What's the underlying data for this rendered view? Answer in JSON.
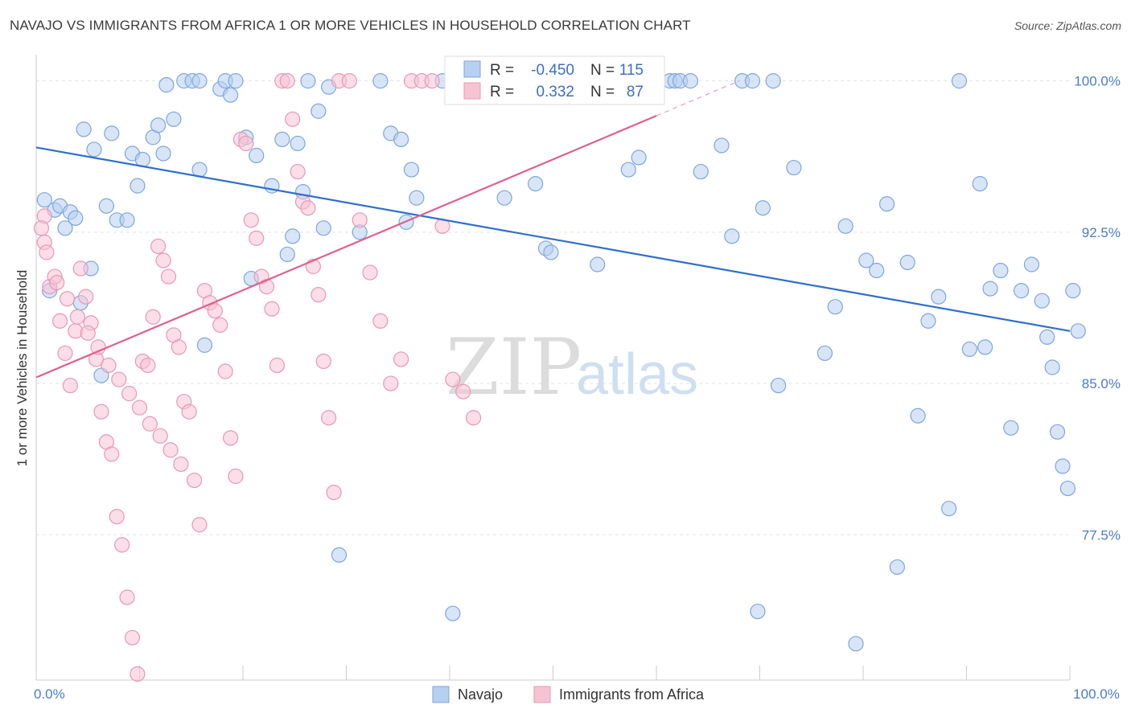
{
  "title": "NAVAJO VS IMMIGRANTS FROM AFRICA 1 OR MORE VEHICLES IN HOUSEHOLD CORRELATION CHART",
  "source": "Source: ZipAtlas.com",
  "watermark": {
    "zip": "ZIP",
    "atlas": "atlas"
  },
  "colors": {
    "navajo_fill": "#b7cff0",
    "navajo_stroke": "#7ea6dd",
    "navajo_line": "#2f6fcc",
    "africa_fill": "#f7c3d3",
    "africa_stroke": "#e898b3",
    "africa_line": "#e0608b",
    "grid": "#e3e3e3",
    "tick_text": "#4a7cc7"
  },
  "stats": {
    "navajo": {
      "r_label": "R =",
      "r_value": "-0.450",
      "n_label": "N =",
      "n_value": "115"
    },
    "africa": {
      "r_label": "R =",
      "r_value": "0.332",
      "n_label": "N =",
      "n_value": "87"
    }
  },
  "chart_data": {
    "type": "scatter",
    "title": "NAVAJO VS IMMIGRANTS FROM AFRICA 1 OR MORE VEHICLES IN HOUSEHOLD CORRELATION CHART",
    "xlabel": "",
    "ylabel": "1 or more Vehicles in Household",
    "xlim": [
      0,
      100
    ],
    "ylim": [
      70.3,
      101.3
    ],
    "x_tick_labels": [
      {
        "value": 0,
        "label": "0.0%"
      },
      {
        "value": 100,
        "label": "100.0%"
      }
    ],
    "y_tick_labels": [
      {
        "value": 100.0,
        "label": "100.0%"
      },
      {
        "value": 92.5,
        "label": "92.5%"
      },
      {
        "value": 85.0,
        "label": "85.0%"
      },
      {
        "value": 77.5,
        "label": "77.5%"
      }
    ],
    "grid": true,
    "legend_position": "bottom-center",
    "series": [
      {
        "name": "Navajo",
        "trend": {
          "x": [
            0,
            100
          ],
          "y": [
            96.7,
            87.6
          ]
        },
        "points": [
          [
            1.3,
            89.6
          ],
          [
            0.8,
            94.1
          ],
          [
            1.8,
            93.6
          ],
          [
            2.3,
            93.8
          ],
          [
            2.8,
            92.7
          ],
          [
            3.3,
            93.5
          ],
          [
            3.8,
            93.2
          ],
          [
            4.3,
            89.0
          ],
          [
            4.6,
            97.6
          ],
          [
            5.3,
            90.7
          ],
          [
            5.6,
            96.6
          ],
          [
            6.3,
            85.4
          ],
          [
            6.8,
            93.8
          ],
          [
            7.3,
            97.4
          ],
          [
            7.8,
            93.1
          ],
          [
            8.8,
            93.1
          ],
          [
            9.3,
            96.4
          ],
          [
            9.8,
            94.8
          ],
          [
            10.3,
            96.1
          ],
          [
            11.3,
            97.2
          ],
          [
            11.8,
            97.8
          ],
          [
            12.3,
            96.4
          ],
          [
            12.6,
            99.8
          ],
          [
            13.3,
            98.1
          ],
          [
            14.3,
            100.0
          ],
          [
            15.1,
            100.0
          ],
          [
            15.8,
            100.0
          ],
          [
            15.8,
            95.6
          ],
          [
            16.3,
            86.9
          ],
          [
            17.8,
            99.6
          ],
          [
            18.3,
            100.0
          ],
          [
            18.8,
            99.3
          ],
          [
            19.3,
            100.0
          ],
          [
            20.3,
            97.2
          ],
          [
            20.8,
            90.2
          ],
          [
            21.3,
            96.3
          ],
          [
            22.8,
            94.8
          ],
          [
            23.8,
            97.1
          ],
          [
            24.3,
            91.4
          ],
          [
            24.8,
            92.3
          ],
          [
            25.3,
            96.9
          ],
          [
            25.8,
            94.5
          ],
          [
            26.3,
            100.0
          ],
          [
            27.3,
            98.5
          ],
          [
            27.8,
            92.7
          ],
          [
            28.3,
            99.7
          ],
          [
            29.3,
            76.5
          ],
          [
            31.3,
            92.5
          ],
          [
            33.3,
            100.0
          ],
          [
            34.3,
            97.4
          ],
          [
            35.3,
            97.1
          ],
          [
            35.8,
            93.0
          ],
          [
            36.3,
            95.6
          ],
          [
            36.8,
            94.2
          ],
          [
            39.3,
            100.0
          ],
          [
            40.3,
            73.6
          ],
          [
            41.3,
            100.0
          ],
          [
            42.3,
            100.0
          ],
          [
            43.3,
            100.0
          ],
          [
            44.3,
            100.0
          ],
          [
            45.3,
            94.2
          ],
          [
            47.3,
            100.0
          ],
          [
            48.3,
            94.9
          ],
          [
            49.3,
            91.7
          ],
          [
            49.8,
            91.5
          ],
          [
            52.3,
            100.0
          ],
          [
            54.3,
            90.9
          ],
          [
            55.3,
            100.0
          ],
          [
            56.3,
            100.0
          ],
          [
            57.3,
            95.6
          ],
          [
            58.3,
            96.2
          ],
          [
            61.3,
            100.0
          ],
          [
            61.8,
            100.0
          ],
          [
            62.3,
            100.0
          ],
          [
            63.3,
            100.0
          ],
          [
            64.3,
            95.5
          ],
          [
            66.3,
            96.8
          ],
          [
            67.3,
            92.3
          ],
          [
            68.3,
            100.0
          ],
          [
            69.3,
            100.0
          ],
          [
            69.8,
            73.7
          ],
          [
            70.3,
            93.7
          ],
          [
            71.3,
            100.0
          ],
          [
            71.8,
            84.9
          ],
          [
            73.3,
            95.7
          ],
          [
            76.3,
            86.5
          ],
          [
            77.3,
            88.8
          ],
          [
            78.3,
            92.8
          ],
          [
            79.3,
            72.1
          ],
          [
            80.3,
            91.1
          ],
          [
            81.3,
            90.6
          ],
          [
            82.3,
            93.9
          ],
          [
            83.3,
            75.9
          ],
          [
            84.3,
            91.0
          ],
          [
            85.3,
            83.4
          ],
          [
            86.3,
            88.1
          ],
          [
            87.3,
            89.3
          ],
          [
            88.3,
            78.8
          ],
          [
            89.3,
            100.0
          ],
          [
            90.3,
            86.7
          ],
          [
            91.3,
            94.9
          ],
          [
            91.8,
            86.8
          ],
          [
            92.3,
            89.7
          ],
          [
            93.3,
            90.6
          ],
          [
            94.3,
            82.8
          ],
          [
            95.3,
            89.6
          ],
          [
            96.3,
            90.9
          ],
          [
            97.3,
            89.1
          ],
          [
            97.8,
            87.3
          ],
          [
            98.3,
            85.8
          ],
          [
            98.8,
            82.6
          ],
          [
            99.3,
            80.9
          ],
          [
            99.8,
            79.8
          ],
          [
            100.3,
            89.6
          ],
          [
            100.8,
            87.6
          ]
        ]
      },
      {
        "name": "Immigrants from Africa",
        "trend": {
          "x": [
            0,
            68
          ],
          "y": [
            85.3,
            100.0
          ]
        },
        "points": [
          [
            0.8,
            93.3
          ],
          [
            0.8,
            92.0
          ],
          [
            1.3,
            89.8
          ],
          [
            1.8,
            90.3
          ],
          [
            2.3,
            88.1
          ],
          [
            2.8,
            86.5
          ],
          [
            3.3,
            84.9
          ],
          [
            3.8,
            87.6
          ],
          [
            4.3,
            90.7
          ],
          [
            4.8,
            89.3
          ],
          [
            5.3,
            88.0
          ],
          [
            5.8,
            86.2
          ],
          [
            6.3,
            83.6
          ],
          [
            6.8,
            82.1
          ],
          [
            7.3,
            81.5
          ],
          [
            7.8,
            78.4
          ],
          [
            8.3,
            77.0
          ],
          [
            8.8,
            74.4
          ],
          [
            9.3,
            72.4
          ],
          [
            9.8,
            70.6
          ],
          [
            10.3,
            86.1
          ],
          [
            10.8,
            85.9
          ],
          [
            11.3,
            88.3
          ],
          [
            11.8,
            91.8
          ],
          [
            12.3,
            91.1
          ],
          [
            12.8,
            90.3
          ],
          [
            13.3,
            87.4
          ],
          [
            13.8,
            86.8
          ],
          [
            14.3,
            84.1
          ],
          [
            14.8,
            83.6
          ],
          [
            15.3,
            80.2
          ],
          [
            15.8,
            78.0
          ],
          [
            16.3,
            89.6
          ],
          [
            16.8,
            89.0
          ],
          [
            17.3,
            88.6
          ],
          [
            17.8,
            87.9
          ],
          [
            18.3,
            85.6
          ],
          [
            18.8,
            82.3
          ],
          [
            19.3,
            80.4
          ],
          [
            19.8,
            97.1
          ],
          [
            20.3,
            96.9
          ],
          [
            20.8,
            93.1
          ],
          [
            21.3,
            92.2
          ],
          [
            21.8,
            90.3
          ],
          [
            22.3,
            89.8
          ],
          [
            22.8,
            88.7
          ],
          [
            23.3,
            85.9
          ],
          [
            23.8,
            100.0
          ],
          [
            24.3,
            100.0
          ],
          [
            24.8,
            98.1
          ],
          [
            25.3,
            95.5
          ],
          [
            25.8,
            94.0
          ],
          [
            26.3,
            93.7
          ],
          [
            26.8,
            90.8
          ],
          [
            27.3,
            89.4
          ],
          [
            27.8,
            86.1
          ],
          [
            28.3,
            83.3
          ],
          [
            28.8,
            79.6
          ],
          [
            29.3,
            100.0
          ],
          [
            30.3,
            100.0
          ],
          [
            31.3,
            93.1
          ],
          [
            32.3,
            90.5
          ],
          [
            33.3,
            88.1
          ],
          [
            34.3,
            85.0
          ],
          [
            35.3,
            86.2
          ],
          [
            36.3,
            100.0
          ],
          [
            37.3,
            100.0
          ],
          [
            38.3,
            100.0
          ],
          [
            39.3,
            92.8
          ],
          [
            40.3,
            85.2
          ],
          [
            41.3,
            84.6
          ],
          [
            42.3,
            83.3
          ],
          [
            0.5,
            92.7
          ],
          [
            1.0,
            91.5
          ],
          [
            2.0,
            90.0
          ],
          [
            3.0,
            89.2
          ],
          [
            4.0,
            88.3
          ],
          [
            5.0,
            87.5
          ],
          [
            6.0,
            86.8
          ],
          [
            7.0,
            85.9
          ],
          [
            8.0,
            85.2
          ],
          [
            9.0,
            84.5
          ],
          [
            10.0,
            83.8
          ],
          [
            11.0,
            83.0
          ],
          [
            12.0,
            82.4
          ],
          [
            13.0,
            81.7
          ],
          [
            14.0,
            81.0
          ]
        ]
      }
    ]
  }
}
